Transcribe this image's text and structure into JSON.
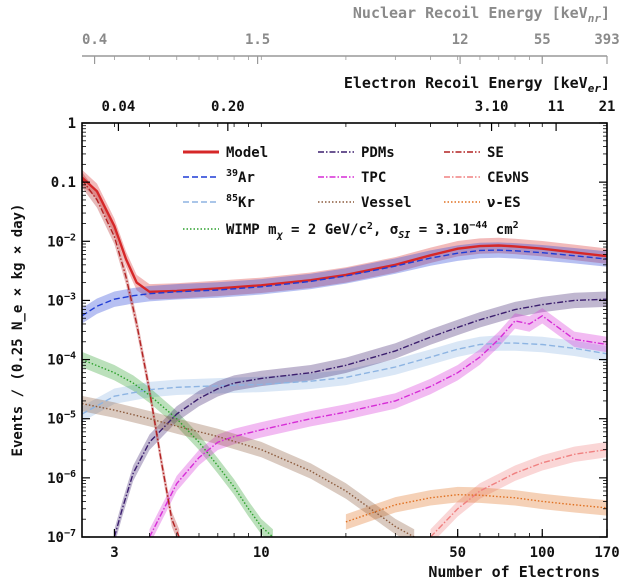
{
  "chart_data": {
    "type": "line",
    "xlabel": "Number of Electrons",
    "ylabel": "Events / (0.25 N_e × kg × day)",
    "x_scale": "log",
    "y_scale": "log",
    "xlim": [
      2.3,
      170
    ],
    "ylim": [
      1e-07,
      1
    ],
    "x_ticks": [
      3,
      10,
      50,
      100,
      170
    ],
    "x_tick_labels": [
      "3",
      "10",
      "50",
      "100",
      "170"
    ],
    "y_ticks": [
      1e-07,
      1e-06,
      1e-05,
      0.0001,
      0.001,
      0.01,
      0.1,
      1
    ],
    "y_tick_labels": [
      "10^-7",
      "10^-6",
      "10^-5",
      "10^-4",
      "10^-3",
      "10^-2",
      "0.1",
      "1"
    ],
    "top_axis_er": {
      "label": "Electron Recoil Energy [keV_er]",
      "ticks_at_ne": [
        3.1,
        7.6,
        66,
        112,
        170
      ],
      "tick_labels": [
        "0.04",
        "0.20",
        "3.10",
        "11",
        "21"
      ]
    },
    "top_axis_nr": {
      "label": "Nuclear Recoil Energy [keV_nr]",
      "ticks_at_ne": [
        2.55,
        9.7,
        51,
        100,
        170
      ],
      "tick_labels": [
        "0.4",
        "1.5",
        "12",
        "55",
        "393"
      ]
    },
    "legend_placement": "top-center",
    "series": [
      {
        "name": "Model",
        "color": "#d62728",
        "style": "solid",
        "band": true,
        "x": [
          2.3,
          2.6,
          3.0,
          3.3,
          3.6,
          4.0,
          5.0,
          7.0,
          10,
          15,
          20,
          30,
          40,
          50,
          60,
          70,
          80,
          100,
          130,
          170
        ],
        "y": [
          0.12,
          0.07,
          0.018,
          0.005,
          0.002,
          0.0014,
          0.00145,
          0.0016,
          0.0018,
          0.0022,
          0.0027,
          0.004,
          0.0058,
          0.0075,
          0.0083,
          0.0085,
          0.0082,
          0.0075,
          0.0065,
          0.0056
        ]
      },
      {
        "name": "39Ar",
        "color": "#1f3cd6",
        "style": "dashed",
        "band": true,
        "x": [
          2.3,
          2.6,
          3.0,
          3.5,
          4.0,
          5.0,
          7.0,
          10,
          15,
          20,
          30,
          40,
          50,
          60,
          70,
          80,
          100,
          130,
          170
        ],
        "y": [
          0.00055,
          0.0008,
          0.00105,
          0.0012,
          0.0013,
          0.0014,
          0.0015,
          0.0017,
          0.0021,
          0.0026,
          0.0038,
          0.0052,
          0.0063,
          0.007,
          0.0071,
          0.0069,
          0.0064,
          0.0057,
          0.005
        ]
      },
      {
        "name": "85Kr",
        "color": "#8db4e2",
        "style": "dashed",
        "band": true,
        "x": [
          2.3,
          3.0,
          4.0,
          5.0,
          7.0,
          10,
          15,
          20,
          30,
          40,
          50,
          60,
          70,
          80,
          100,
          130,
          170
        ],
        "y": [
          1.2e-05,
          2.4e-05,
          3.1e-05,
          3.4e-05,
          3.6e-05,
          3.8e-05,
          4.3e-05,
          5e-05,
          7.5e-05,
          0.00011,
          0.00015,
          0.00018,
          0.00019,
          0.00019,
          0.00018,
          0.000155,
          0.000125
        ]
      },
      {
        "name": "WIMP m_χ = 2 GeV/c², σ_SI = 3.10^-44 cm²",
        "color": "#2ca02c",
        "style": "dotted",
        "band": true,
        "x": [
          2.3,
          3.0,
          3.5,
          4.0,
          5.0,
          6.0,
          7.0,
          8.0,
          9.0,
          10,
          11
        ],
        "y": [
          0.0001,
          6e-05,
          4e-05,
          2.5e-05,
          1e-05,
          4e-06,
          1.6e-06,
          7e-07,
          3e-07,
          1.5e-07,
          1e-07
        ]
      },
      {
        "name": "PDMs",
        "color": "#3b1e6e",
        "style": "dashdot",
        "band": true,
        "x": [
          3.0,
          3.2,
          3.5,
          4.0,
          5.0,
          6.0,
          7.0,
          8.0,
          10,
          15,
          20,
          30,
          40,
          50,
          60,
          80,
          100,
          130,
          170
        ],
        "y": [
          1e-07,
          3e-07,
          1.2e-06,
          4e-06,
          1.2e-05,
          2.2e-05,
          3.2e-05,
          4e-05,
          4.8e-05,
          6e-05,
          8e-05,
          0.00014,
          0.00024,
          0.00035,
          0.00047,
          0.0007,
          0.00085,
          0.001,
          0.00105
        ]
      },
      {
        "name": "TPC",
        "color": "#d62cd6",
        "style": "dashdot",
        "band": true,
        "x": [
          4.0,
          4.5,
          5.0,
          6.0,
          7.0,
          8.0,
          10,
          15,
          20,
          30,
          40,
          50,
          60,
          70,
          80,
          90,
          100,
          130,
          170
        ],
        "y": [
          1e-07,
          3e-07,
          8e-07,
          2.2e-06,
          4e-06,
          5e-06,
          6.5e-06,
          1e-05,
          1.3e-05,
          2e-05,
          3.5e-05,
          6e-05,
          0.00011,
          0.00022,
          0.00045,
          0.0004,
          0.00055,
          0.00022,
          0.00018
        ]
      },
      {
        "name": "SE",
        "color": "#b22222",
        "style": "dashdot",
        "band": true,
        "x": [
          2.3,
          2.6,
          3.0,
          3.3,
          3.6,
          4.0,
          4.4,
          4.8,
          5.1
        ],
        "y": [
          0.11,
          0.05,
          0.012,
          0.0025,
          0.0004,
          3e-05,
          2e-06,
          2e-07,
          1e-07
        ]
      },
      {
        "name": "CEνNS",
        "color": "#f08080",
        "style": "dashdot",
        "band": true,
        "x": [
          40,
          50,
          60,
          80,
          100,
          130,
          170
        ],
        "y": [
          1e-07,
          3e-07,
          6e-07,
          1.2e-06,
          1.8e-06,
          2.5e-06,
          3e-06
        ]
      },
      {
        "name": "ν-ES",
        "color": "#e07020",
        "style": "dotted",
        "band": true,
        "x": [
          20,
          30,
          40,
          50,
          60,
          80,
          100,
          130,
          170
        ],
        "y": [
          1.8e-07,
          3.5e-07,
          4.6e-07,
          5.2e-07,
          5.1e-07,
          4.6e-07,
          4e-07,
          3.5e-07,
          3.1e-07
        ]
      },
      {
        "name": "Vessel",
        "color": "#8b5a3c",
        "style": "dotted",
        "band": true,
        "x": [
          2.3,
          3.0,
          4.0,
          5.0,
          7.0,
          10,
          15,
          20,
          25,
          30,
          35
        ],
        "y": [
          1.8e-05,
          1.4e-05,
          1e-05,
          7.5e-06,
          5e-06,
          3e-06,
          1.3e-06,
          6e-07,
          2.8e-07,
          1.5e-07,
          1e-07
        ]
      }
    ],
    "legend": [
      {
        "label": "Model",
        "series": 0,
        "col": 0,
        "row": 0
      },
      {
        "label": "PDMs",
        "series": 4,
        "col": 1,
        "row": 0
      },
      {
        "label": "SE",
        "series": 6,
        "col": 2,
        "row": 0
      },
      {
        "label": "39Ar",
        "series": 1,
        "col": 0,
        "row": 1
      },
      {
        "label": "TPC",
        "series": 5,
        "col": 1,
        "row": 1
      },
      {
        "label": "CEνNS",
        "series": 7,
        "col": 2,
        "row": 1
      },
      {
        "label": "85Kr",
        "series": 2,
        "col": 0,
        "row": 2
      },
      {
        "label": "Vessel",
        "series": 9,
        "col": 1,
        "row": 2
      },
      {
        "label": "ν-ES",
        "series": 8,
        "col": 2,
        "row": 2
      },
      {
        "label": "WIMP mχ = 2 GeV/c², σSI = 3.10^-44 cm²",
        "series": 3,
        "col": 0,
        "row": 3
      }
    ]
  }
}
